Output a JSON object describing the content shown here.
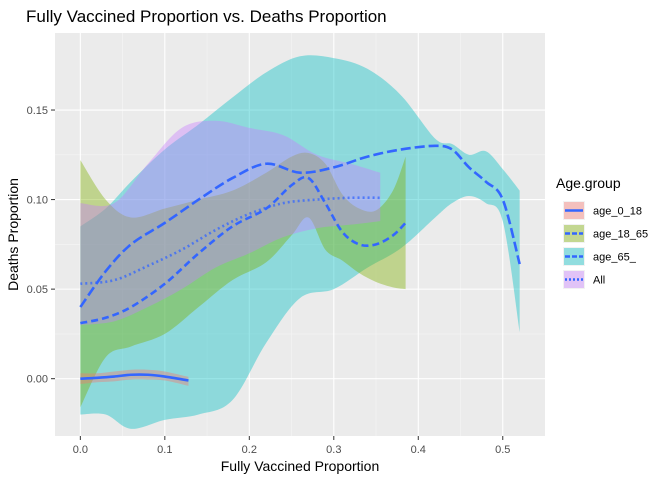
{
  "chart_data": {
    "type": "line",
    "title": "Fully Vaccined Proportion vs. Deaths Proportion",
    "xlabel": "Fully Vaccined Proportion",
    "ylabel": "Deaths Proportion",
    "xlim": [
      -0.03,
      0.55
    ],
    "ylim": [
      -0.032,
      0.193
    ],
    "x_ticks": [
      0.0,
      0.1,
      0.2,
      0.3,
      0.4,
      0.5
    ],
    "x_tick_labels": [
      "0.0",
      "0.1",
      "0.2",
      "0.3",
      "0.4",
      "0.5"
    ],
    "y_ticks": [
      0.0,
      0.05,
      0.1,
      0.15
    ],
    "y_tick_labels": [
      "0.00",
      "0.05",
      "0.10",
      "0.15"
    ],
    "grid": true,
    "legend": {
      "title": "Age.group",
      "placement": "right"
    },
    "series": [
      {
        "name": "age_0_18",
        "fill": "#F8766D",
        "line_style": "solid",
        "x": [
          0.0,
          0.02,
          0.04,
          0.06,
          0.08,
          0.1,
          0.128
        ],
        "y": [
          0.0,
          0.0005,
          0.0012,
          0.0022,
          0.0022,
          0.0012,
          -0.001
        ],
        "lower": [
          -0.003,
          -0.002,
          -0.0015,
          -0.0005,
          -0.0005,
          -0.001,
          -0.004
        ],
        "upper": [
          0.003,
          0.003,
          0.004,
          0.005,
          0.005,
          0.004,
          0.001
        ]
      },
      {
        "name": "age_18_65",
        "fill": "#7CAE00",
        "line_style": "dashed",
        "x": [
          0.0,
          0.03,
          0.06,
          0.1,
          0.14,
          0.18,
          0.22,
          0.25,
          0.27,
          0.29,
          0.31,
          0.33,
          0.35,
          0.37,
          0.385
        ],
        "y": [
          0.031,
          0.034,
          0.04,
          0.053,
          0.07,
          0.085,
          0.095,
          0.108,
          0.112,
          0.098,
          0.082,
          0.075,
          0.075,
          0.08,
          0.087
        ],
        "lower": [
          -0.016,
          0.012,
          0.018,
          0.025,
          0.04,
          0.055,
          0.065,
          0.08,
          0.09,
          0.072,
          0.066,
          0.059,
          0.054,
          0.051,
          0.05
        ],
        "upper": [
          0.122,
          0.1,
          0.09,
          0.095,
          0.1,
          0.105,
          0.115,
          0.124,
          0.126,
          0.12,
          0.103,
          0.095,
          0.094,
          0.105,
          0.124
        ]
      },
      {
        "name": "age_65_",
        "fill": "#00BFC4",
        "line_style": "longdash",
        "x": [
          0.0,
          0.03,
          0.06,
          0.1,
          0.14,
          0.18,
          0.22,
          0.26,
          0.3,
          0.34,
          0.38,
          0.42,
          0.44,
          0.46,
          0.48,
          0.5,
          0.52
        ],
        "y": [
          0.04,
          0.06,
          0.075,
          0.087,
          0.1,
          0.112,
          0.12,
          0.115,
          0.118,
          0.124,
          0.128,
          0.13,
          0.128,
          0.118,
          0.11,
          0.1,
          0.064
        ],
        "lower": [
          -0.02,
          -0.02,
          -0.028,
          -0.023,
          -0.02,
          -0.012,
          0.02,
          0.045,
          0.05,
          0.062,
          0.073,
          0.09,
          0.098,
          0.102,
          0.098,
          0.088,
          0.026
        ],
        "upper": [
          0.085,
          0.095,
          0.11,
          0.128,
          0.142,
          0.157,
          0.171,
          0.18,
          0.179,
          0.173,
          0.158,
          0.134,
          0.131,
          0.125,
          0.127,
          0.117,
          0.105
        ]
      },
      {
        "name": "All",
        "fill": "#C77CFF",
        "line_style": "dotted",
        "x": [
          0.0,
          0.04,
          0.08,
          0.12,
          0.16,
          0.2,
          0.24,
          0.28,
          0.32,
          0.355
        ],
        "y": [
          0.053,
          0.055,
          0.063,
          0.072,
          0.083,
          0.092,
          0.098,
          0.1,
          0.101,
          0.101
        ],
        "lower": [
          0.03,
          0.032,
          0.04,
          0.05,
          0.062,
          0.07,
          0.079,
          0.084,
          0.086,
          0.088
        ],
        "upper": [
          0.098,
          0.098,
          0.12,
          0.14,
          0.144,
          0.14,
          0.136,
          0.125,
          0.12,
          0.115
        ]
      }
    ]
  }
}
